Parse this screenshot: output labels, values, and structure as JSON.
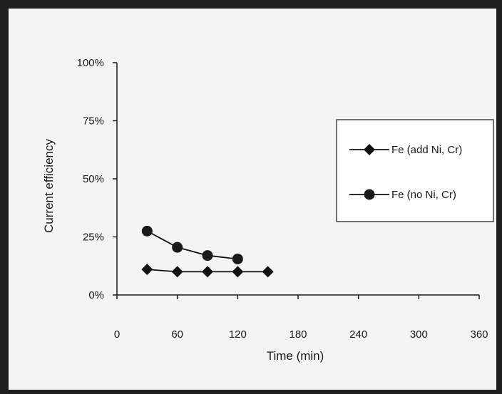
{
  "chart_data": {
    "type": "line",
    "xlabel": "Time (min)",
    "ylabel": "Current efficiency",
    "xlim": [
      0,
      360
    ],
    "ylim": [
      0,
      100
    ],
    "x_ticks": [
      0,
      60,
      120,
      180,
      240,
      300,
      360
    ],
    "x_tick_labels": [
      "0",
      "60",
      "120",
      "180",
      "240",
      "300",
      "360"
    ],
    "y_ticks": [
      0,
      25,
      50,
      75,
      100
    ],
    "y_tick_labels": [
      "0%",
      "25%",
      "50%",
      "75%",
      "100%"
    ],
    "grid": false,
    "legend_position": "right",
    "series": [
      {
        "name": "Fe (add Ni, Cr)",
        "marker": "diamond",
        "color": "#111111",
        "x": [
          30,
          60,
          90,
          120,
          150
        ],
        "y": [
          11,
          10,
          10,
          10,
          10
        ]
      },
      {
        "name": "Fe (no Ni, Cr)",
        "marker": "circle",
        "color": "#111111",
        "x": [
          30,
          60,
          90,
          120
        ],
        "y": [
          27.5,
          20.5,
          17,
          15.5
        ]
      }
    ]
  }
}
